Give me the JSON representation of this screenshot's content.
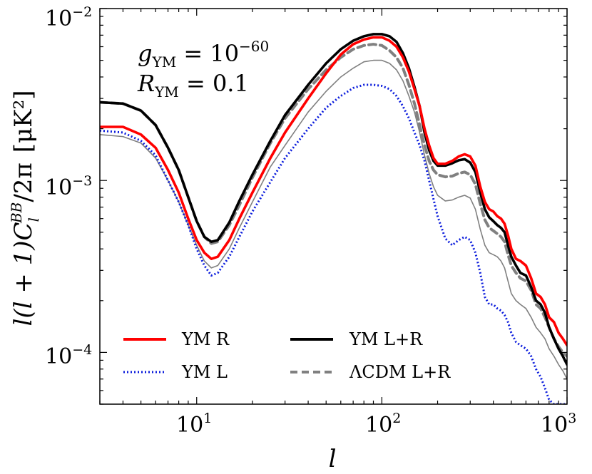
{
  "chart_data": {
    "type": "line",
    "title": "",
    "xlabel": "l",
    "ylabel": "l(l+1)C_l^BB/2π  [μK²]",
    "ylabel_parts": {
      "main": "l(l + 1)C",
      "sub": "l",
      "sup": "BB",
      "tail": "/2π",
      "unit": "[μK²]"
    },
    "xscale": "log",
    "yscale": "log",
    "xlim": [
      3,
      1000
    ],
    "ylim": [
      5e-05,
      0.01
    ],
    "x_ticks": [
      {
        "value": 10,
        "base": "10",
        "exp": "1"
      },
      {
        "value": 100,
        "base": "10",
        "exp": "2"
      },
      {
        "value": 1000,
        "base": "10",
        "exp": "3"
      }
    ],
    "y_ticks": [
      {
        "value": 0.0001,
        "base": "10",
        "exp": "−4"
      },
      {
        "value": 0.001,
        "base": "10",
        "exp": "−3"
      },
      {
        "value": 0.01,
        "base": "10",
        "exp": "−2"
      }
    ],
    "annotations": [
      {
        "sym": "g",
        "sub": "YM",
        "rel": " = 10",
        "sup": "−60",
        "position": "top-left"
      },
      {
        "sym": "R",
        "sub": "YM",
        "rel": " = 0.1",
        "sup": "",
        "position": "top-left"
      }
    ],
    "legend_position": "bottom",
    "series": [
      {
        "name": "YM R",
        "color": "#ff0000",
        "style": "solid-thick",
        "x": [
          3,
          4,
          5,
          6,
          7,
          8,
          9,
          10,
          11,
          12,
          13,
          15,
          17,
          20,
          25,
          30,
          40,
          50,
          60,
          70,
          80,
          90,
          100,
          110,
          120,
          130,
          140,
          150,
          160,
          170,
          180,
          190,
          200,
          220,
          240,
          260,
          280,
          300,
          320,
          340,
          360,
          380,
          400,
          420,
          440,
          460,
          480,
          500,
          530,
          560,
          600,
          640,
          680,
          720,
          760,
          800,
          850,
          900,
          950,
          1000
        ],
        "y": [
          0.00205,
          0.00205,
          0.00185,
          0.00155,
          0.00115,
          0.00085,
          0.0006,
          0.00045,
          0.00038,
          0.00035,
          0.00036,
          0.00045,
          0.0006,
          0.00085,
          0.00135,
          0.0019,
          0.003,
          0.0042,
          0.0054,
          0.0062,
          0.0066,
          0.0068,
          0.0068,
          0.0065,
          0.006,
          0.0052,
          0.0043,
          0.0034,
          0.0027,
          0.002,
          0.0016,
          0.00135,
          0.00125,
          0.00125,
          0.0013,
          0.00138,
          0.00142,
          0.00138,
          0.00122,
          0.00092,
          0.00075,
          0.00068,
          0.00066,
          0.00062,
          0.0006,
          0.00056,
          0.00048,
          0.0004,
          0.00035,
          0.00034,
          0.00032,
          0.00027,
          0.00022,
          0.00021,
          0.00019,
          0.00016,
          0.00015,
          0.00013,
          0.00012,
          0.00011
        ]
      },
      {
        "name": "YM L",
        "color": "#0a1bdc",
        "style": "dotted",
        "x": [
          3,
          4,
          5,
          6,
          7,
          8,
          9,
          10,
          11,
          12,
          13,
          15,
          17,
          20,
          25,
          30,
          40,
          50,
          60,
          70,
          80,
          90,
          100,
          110,
          120,
          130,
          140,
          150,
          160,
          170,
          180,
          190,
          200,
          220,
          240,
          260,
          280,
          300,
          320,
          340,
          360,
          380,
          400,
          420,
          440,
          460,
          480,
          500,
          530,
          560,
          600,
          640,
          680,
          720,
          760,
          800,
          850,
          900,
          950,
          1000
        ],
        "y": [
          0.00195,
          0.0019,
          0.0017,
          0.0014,
          0.001,
          0.00075,
          0.00055,
          0.0004,
          0.00032,
          0.00028,
          0.00029,
          0.00036,
          0.00047,
          0.00066,
          0.00098,
          0.00135,
          0.002,
          0.00265,
          0.0031,
          0.00345,
          0.0036,
          0.0036,
          0.00355,
          0.0034,
          0.0031,
          0.0027,
          0.0023,
          0.0019,
          0.0016,
          0.0013,
          0.001,
          0.00078,
          0.00062,
          0.00046,
          0.00042,
          0.00045,
          0.00047,
          0.00045,
          0.00038,
          0.00029,
          0.00021,
          0.00019,
          0.00019,
          0.00018,
          0.000175,
          0.000165,
          0.00015,
          0.00013,
          0.000115,
          0.00011,
          0.000105,
          9.5e-05,
          8e-05,
          7.2e-05,
          6.2e-05,
          5.3e-05,
          5e-05,
          5e-05,
          5e-05,
          5e-05
        ]
      },
      {
        "name": "YM L+R",
        "color": "#000000",
        "style": "solid-thick",
        "x": [
          3,
          4,
          5,
          6,
          7,
          8,
          9,
          10,
          11,
          12,
          13,
          15,
          17,
          20,
          25,
          30,
          40,
          50,
          60,
          70,
          80,
          90,
          100,
          110,
          120,
          130,
          140,
          150,
          160,
          170,
          180,
          190,
          200,
          220,
          240,
          260,
          280,
          300,
          320,
          340,
          360,
          380,
          400,
          420,
          440,
          460,
          480,
          500,
          530,
          560,
          600,
          640,
          680,
          720,
          760,
          800,
          850,
          900,
          950,
          1000
        ],
        "y": [
          0.00285,
          0.0028,
          0.00255,
          0.0021,
          0.00155,
          0.00115,
          0.0008,
          0.00058,
          0.00047,
          0.00044,
          0.00045,
          0.00057,
          0.00076,
          0.00108,
          0.0017,
          0.0024,
          0.0036,
          0.0048,
          0.0058,
          0.0065,
          0.0069,
          0.0071,
          0.0071,
          0.0069,
          0.0064,
          0.0055,
          0.0045,
          0.0035,
          0.0027,
          0.0019,
          0.0015,
          0.0013,
          0.00122,
          0.00122,
          0.00126,
          0.00131,
          0.00133,
          0.00127,
          0.00112,
          0.00085,
          0.00068,
          0.00061,
          0.00058,
          0.00055,
          0.00053,
          0.0005,
          0.00042,
          0.00036,
          0.00032,
          0.00029,
          0.00028,
          0.00024,
          0.0002,
          0.00019,
          0.00017,
          0.00014,
          0.00012,
          0.000105,
          9.5e-05,
          8.5e-05
        ]
      },
      {
        "name": "ΛCDM L+R",
        "color": "#808080",
        "style": "dashed",
        "x": [
          3,
          4,
          5,
          6,
          7,
          8,
          9,
          10,
          11,
          12,
          13,
          15,
          17,
          20,
          25,
          30,
          40,
          50,
          60,
          70,
          80,
          90,
          100,
          110,
          120,
          130,
          140,
          150,
          160,
          170,
          180,
          190,
          200,
          220,
          240,
          260,
          280,
          300,
          320,
          340,
          360,
          380,
          400,
          420,
          440,
          460,
          480,
          500,
          530,
          560,
          600,
          640,
          680,
          720,
          760,
          800,
          850,
          900,
          950,
          1000
        ],
        "y": [
          0.00285,
          0.0028,
          0.00255,
          0.0021,
          0.00155,
          0.00115,
          0.0008,
          0.00058,
          0.00047,
          0.00043,
          0.00044,
          0.00055,
          0.00072,
          0.00104,
          0.00165,
          0.0023,
          0.0034,
          0.0044,
          0.0052,
          0.0058,
          0.0061,
          0.0062,
          0.0061,
          0.0057,
          0.0052,
          0.0045,
          0.0036,
          0.0028,
          0.0021,
          0.0016,
          0.0013,
          0.00115,
          0.00108,
          0.00105,
          0.00106,
          0.0011,
          0.00112,
          0.00108,
          0.00095,
          0.00073,
          0.00059,
          0.00053,
          0.00051,
          0.00049,
          0.00047,
          0.00044,
          0.00037,
          0.00032,
          0.00029,
          0.00027,
          0.00026,
          0.00023,
          0.00019,
          0.00018,
          0.00016,
          0.00014,
          0.00012,
          0.000108,
          0.0001,
          9.5e-05
        ]
      },
      {
        "name": "",
        "color": "#808080",
        "style": "solid-thin",
        "x": [
          3,
          4,
          5,
          6,
          7,
          8,
          9,
          10,
          11,
          12,
          13,
          15,
          17,
          20,
          25,
          30,
          40,
          50,
          60,
          70,
          80,
          90,
          100,
          110,
          120,
          130,
          140,
          150,
          160,
          170,
          180,
          190,
          200,
          220,
          240,
          260,
          280,
          300,
          320,
          340,
          360,
          380,
          400,
          420,
          440,
          460,
          480,
          500,
          530,
          560,
          600,
          640,
          680,
          720,
          760,
          800,
          850,
          900,
          950,
          1000
        ],
        "y": [
          0.00185,
          0.0018,
          0.00165,
          0.00135,
          0.001,
          0.00075,
          0.00055,
          0.00042,
          0.00034,
          0.00031,
          0.00032,
          0.0004,
          0.00053,
          0.00075,
          0.0012,
          0.0016,
          0.0025,
          0.0033,
          0.004,
          0.0045,
          0.0049,
          0.005,
          0.005,
          0.0048,
          0.0044,
          0.0038,
          0.0031,
          0.0025,
          0.0019,
          0.0014,
          0.0011,
          0.00092,
          0.00082,
          0.00076,
          0.00077,
          0.0008,
          0.00082,
          0.00079,
          0.00068,
          0.00052,
          0.00042,
          0.00038,
          0.00037,
          0.00036,
          0.00034,
          0.00031,
          0.00026,
          0.00022,
          0.0002,
          0.00019,
          0.00018,
          0.00016,
          0.00014,
          0.00013,
          0.00012,
          0.000105,
          9.5e-05,
          8.5e-05,
          7.8e-05,
          7e-05
        ]
      }
    ]
  }
}
